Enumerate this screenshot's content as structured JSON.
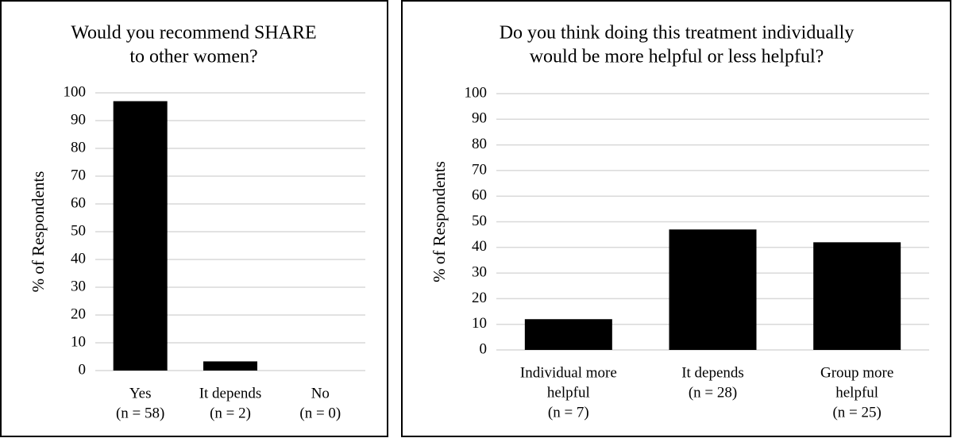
{
  "chart_data": [
    {
      "type": "bar",
      "title": [
        "Would you recommend SHARE",
        "to other women?"
      ],
      "ylabel": "% of Respondents",
      "categories": [
        [
          "Yes",
          "(n = 58)"
        ],
        [
          "It depends",
          "(n = 2)"
        ],
        [
          "No",
          "(n = 0)"
        ]
      ],
      "values": [
        97,
        3.3,
        0
      ],
      "color": "#000000",
      "ylim": [
        0,
        100
      ],
      "yticks": [
        0,
        10,
        20,
        30,
        40,
        50,
        60,
        70,
        80,
        90,
        100
      ],
      "grid": true
    },
    {
      "type": "bar",
      "title": [
        "Do you think doing this treatment individually",
        "would be more helpful or less helpful?"
      ],
      "ylabel": "% of Respondents",
      "categories": [
        [
          "Individual more",
          "helpful",
          "(n = 7)"
        ],
        [
          "It depends",
          "(n = 28)"
        ],
        [
          "Group more",
          "helpful",
          "(n = 25)"
        ]
      ],
      "values": [
        12,
        47,
        42
      ],
      "color": "#000000",
      "ylim": [
        0,
        100
      ],
      "yticks": [
        0,
        10,
        20,
        30,
        40,
        50,
        60,
        70,
        80,
        90,
        100
      ],
      "grid": true
    }
  ]
}
